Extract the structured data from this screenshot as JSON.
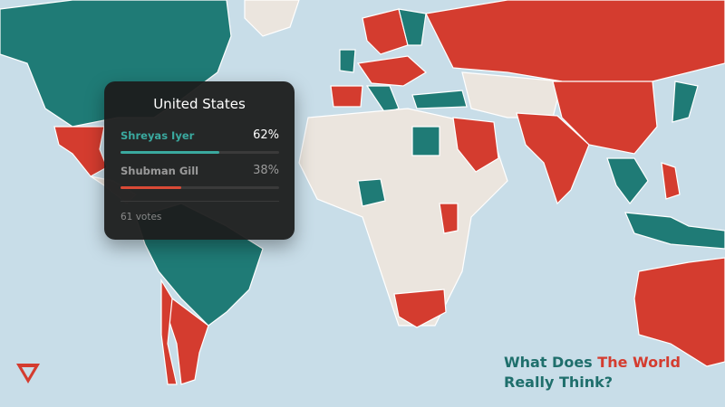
{
  "tooltip": {
    "title": "United States",
    "options": [
      {
        "name": "Shreyas Iyer",
        "value": 62,
        "value_label": "62%",
        "color": "#3aa99f"
      },
      {
        "name": "Shubman Gill",
        "value": 38,
        "value_label": "38%",
        "color": "#d94a36"
      }
    ],
    "votes": "61 votes"
  },
  "caption": {
    "line1": [
      "What Does ",
      "The World"
    ],
    "line2": "Really Think?"
  }
}
